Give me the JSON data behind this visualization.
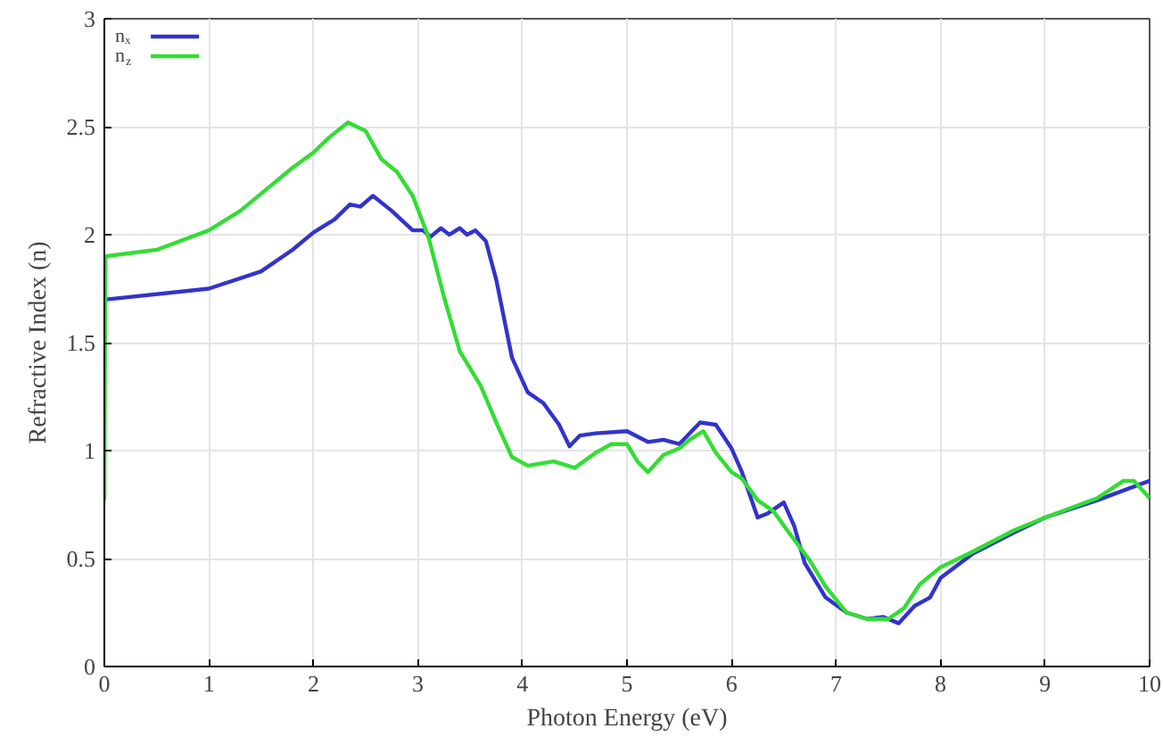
{
  "chart_data": {
    "type": "line",
    "xlabel": "Photon Energy (eV)",
    "ylabel": "Refractive Index (n)",
    "xlim": [
      0,
      10
    ],
    "ylim": [
      0,
      3
    ],
    "xticks": [
      0,
      1,
      2,
      3,
      4,
      5,
      6,
      7,
      8,
      9,
      10
    ],
    "yticks": [
      0,
      0.5,
      1,
      1.5,
      2,
      2.5,
      3
    ],
    "grid": true,
    "legend": "top left",
    "line_style": "solid",
    "marker": "none",
    "series": [
      {
        "name": "nₓ",
        "color": "#3333cc",
        "x": [
          0.02,
          1,
          1.5,
          1.8,
          2,
          2.2,
          2.35,
          2.45,
          2.57,
          2.75,
          2.95,
          3.05,
          3.12,
          3.22,
          3.3,
          3.4,
          3.47,
          3.55,
          3.65,
          3.75,
          3.9,
          4.05,
          4.2,
          4.35,
          4.45,
          4.55,
          4.7,
          5,
          5.2,
          5.35,
          5.5,
          5.7,
          5.85,
          6,
          6.1,
          6.25,
          6.35,
          6.5,
          6.6,
          6.7,
          6.9,
          7.1,
          7.3,
          7.45,
          7.6,
          7.75,
          7.9,
          8,
          8.3,
          8.7,
          9,
          9.5,
          10
        ],
        "values": [
          1.7,
          1.75,
          1.83,
          1.93,
          2.01,
          2.07,
          2.14,
          2.13,
          2.18,
          2.11,
          2.02,
          2.02,
          1.99,
          2.03,
          2,
          2.03,
          2,
          2.02,
          1.97,
          1.79,
          1.43,
          1.27,
          1.22,
          1.12,
          1.02,
          1.07,
          1.08,
          1.09,
          1.04,
          1.05,
          1.03,
          1.13,
          1.12,
          1.01,
          0.9,
          0.69,
          0.71,
          0.76,
          0.65,
          0.48,
          0.32,
          0.25,
          0.22,
          0.23,
          0.2,
          0.28,
          0.32,
          0.41,
          0.52,
          0.62,
          0.69,
          0.77,
          0.86
        ]
      },
      {
        "name": "n$_{z}$",
        "color": "#33dd33",
        "x": [
          0,
          0.01,
          0.5,
          1,
          1.3,
          1.6,
          1.8,
          2,
          2.15,
          2.33,
          2.5,
          2.65,
          2.8,
          2.95,
          3.1,
          3.25,
          3.4,
          3.6,
          3.75,
          3.9,
          4.05,
          4.3,
          4.5,
          4.7,
          4.85,
          5,
          5.1,
          5.2,
          5.35,
          5.5,
          5.6,
          5.73,
          5.85,
          6,
          6.1,
          6.25,
          6.4,
          6.55,
          6.75,
          6.9,
          7.1,
          7.3,
          7.5,
          7.65,
          7.8,
          8,
          8.3,
          8.7,
          9,
          9.5,
          9.75,
          9.85,
          10
        ],
        "values": [
          0.77,
          1.9,
          1.93,
          2.02,
          2.11,
          2.23,
          2.31,
          2.38,
          2.45,
          2.52,
          2.48,
          2.35,
          2.29,
          2.18,
          1.99,
          1.71,
          1.46,
          1.3,
          1.13,
          0.97,
          0.93,
          0.95,
          0.92,
          0.99,
          1.03,
          1.03,
          0.95,
          0.9,
          0.98,
          1.01,
          1.05,
          1.09,
          0.99,
          0.9,
          0.87,
          0.77,
          0.72,
          0.62,
          0.49,
          0.37,
          0.25,
          0.22,
          0.22,
          0.27,
          0.38,
          0.46,
          0.53,
          0.63,
          0.69,
          0.78,
          0.86,
          0.86,
          0.78
        ]
      }
    ]
  }
}
